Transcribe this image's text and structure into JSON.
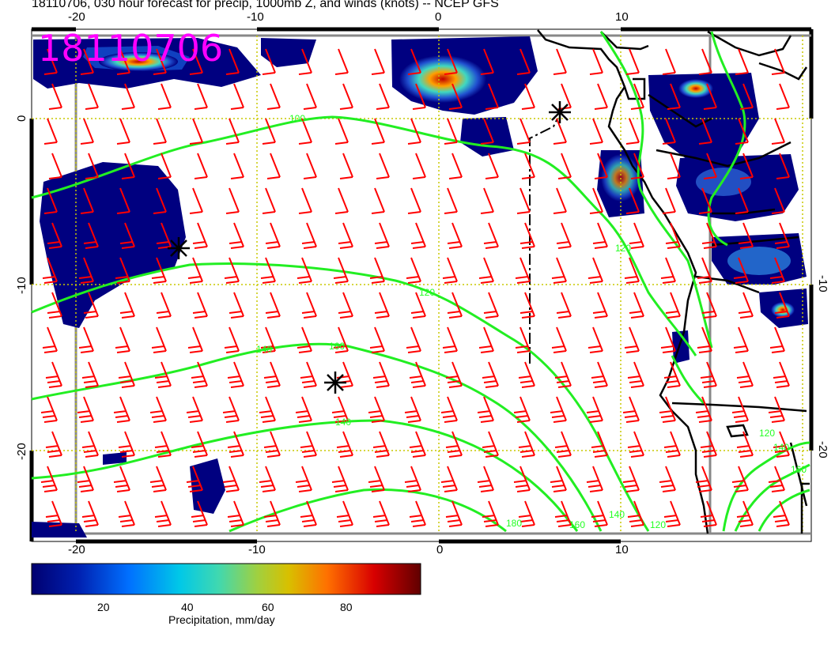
{
  "title": "18110706, 030 hour forecast for precip, 1000mb Z, and winds (knots) -- NCEP GFS",
  "stamp": "18110706",
  "x_ticks_top": [
    "-20",
    "-10",
    "0",
    "10"
  ],
  "x_ticks_bottom": [
    "-20",
    "-10",
    "0",
    "10"
  ],
  "y_ticks_left": [
    "0",
    "-10",
    "-20"
  ],
  "y_ticks_right": [
    "-10",
    "-20"
  ],
  "contour_labels": [
    "100",
    "120",
    "140",
    "160",
    "140",
    "160",
    "180",
    "160",
    "140",
    "120",
    "120",
    "140",
    "160"
  ],
  "colorbar": {
    "label": "Precipitation, mm/day",
    "ticks": [
      "20",
      "40",
      "60",
      "80"
    ],
    "colors": [
      "#000080",
      "#0030c0",
      "#0080ff",
      "#00d0e0",
      "#60e0a0",
      "#c8c800",
      "#ff8000",
      "#e00000",
      "#700000"
    ]
  },
  "colors": {
    "coast": "#000000",
    "contour": "#22ee22",
    "wind_barb": "#ff0000",
    "grid": "#c8c800",
    "stamp": "#ff00ff"
  }
}
